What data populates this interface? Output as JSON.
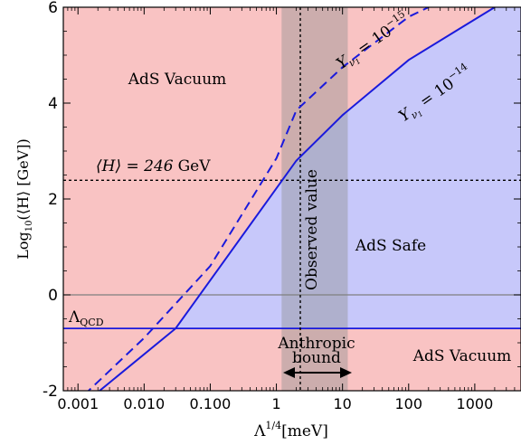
{
  "chart_data": {
    "type": "line",
    "xscale": "log",
    "xlabel": "Λ^{1/4}[meV]",
    "ylabel": "Log10(⟨H⟩ [GeV])",
    "xlim": [
      0.0006,
      5000
    ],
    "ylim": [
      -2,
      6
    ],
    "xticks": [
      0.001,
      0.01,
      0.1,
      1,
      10,
      100,
      1000
    ],
    "xtick_labels": [
      "0.001",
      "0.010",
      "0.100",
      "1",
      "10",
      "100",
      "1000"
    ],
    "yticks": [
      -2,
      0,
      2,
      4,
      6
    ],
    "ytick_labels": [
      "-2",
      "0",
      "2",
      "4",
      "6"
    ],
    "grid": false,
    "colors": {
      "ads_vacuum": "#f9c3c3",
      "ads_safe": "#c7c8fa",
      "curve": "#1a1adc",
      "band": "#8f8f8f",
      "dotted": "#000000",
      "zero_line": "#7f7f7f"
    },
    "series": [
      {
        "name": "Y_{ν1} = 10^{-14}",
        "style": "solid",
        "x": [
          0.0006,
          0.03,
          2,
          10,
          100,
          2000
        ],
        "y": [
          -2.62,
          -0.7,
          2.8,
          3.75,
          4.9,
          6.0
        ]
      },
      {
        "name": "Y_{ν1} = 10^{-15}",
        "style": "dashed",
        "x": [
          0.0006,
          0.01,
          0.1,
          1,
          2,
          10,
          100,
          200
        ],
        "y": [
          -2.5,
          -0.9,
          0.6,
          2.85,
          3.85,
          4.75,
          5.8,
          6.0
        ]
      }
    ],
    "reference_lines": [
      {
        "orientation": "horizontal",
        "y": 2.39,
        "style": "dotted",
        "label": "⟨H⟩ = 246 GeV"
      },
      {
        "orientation": "horizontal",
        "y": -0.7,
        "style": "solid",
        "label": "Λ_QCD"
      },
      {
        "orientation": "horizontal",
        "y": 0,
        "style": "solid"
      },
      {
        "orientation": "vertical",
        "x": 2.3,
        "style": "dotted",
        "label": "Observed value"
      }
    ],
    "band": {
      "x": [
        1.2,
        12
      ],
      "label": "Anthropic bound"
    },
    "regions": [
      {
        "label": "AdS Vacuum",
        "fill": "ads_vacuum"
      },
      {
        "label": "AdS Safe",
        "fill": "ads_safe"
      }
    ],
    "labels": {
      "ads_vacuum_top": "AdS Vacuum",
      "ads_vacuum_bottom": "AdS Vacuum",
      "ads_safe": "AdS Safe",
      "observed": "Observed value",
      "anthropic_1": "Anthropic",
      "anthropic_2": "bound",
      "h_eq_1": "⟨H⟩ = 246",
      "h_eq_2": "GeV",
      "lambda_qcd": "Λ",
      "lambda_qcd_sub": "QCD",
      "ylabel_pre": "Log",
      "ylabel_sub": "10",
      "ylabel_post": "(⟨H⟩ [GeV])",
      "xlabel_pre": "Λ",
      "xlabel_sup": "1/4",
      "xlabel_post": "[meV]",
      "y_label_prefix": "Y",
      "nu_sub": "ν",
      "nu_subsub": "1",
      "eq_base": " = 10",
      "exp14": "−14",
      "exp15": "−15"
    }
  }
}
